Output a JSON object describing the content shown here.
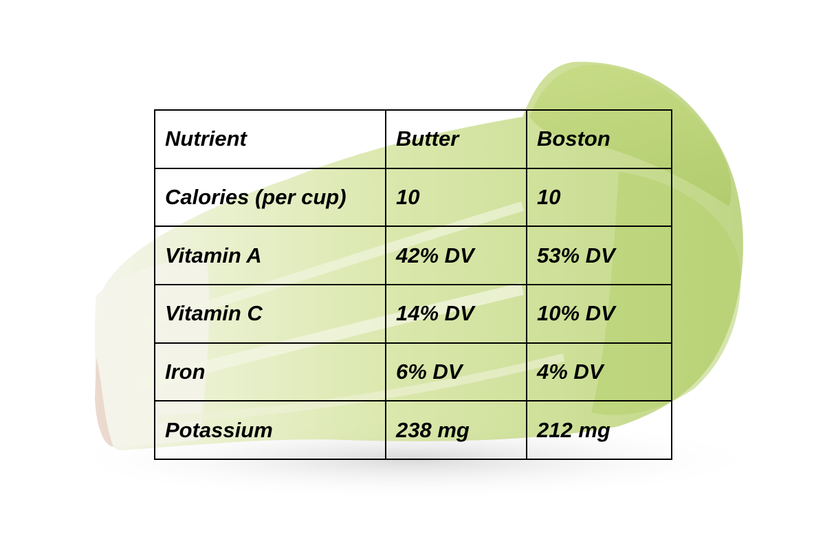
{
  "table": {
    "header": {
      "nutrient": "Nutrient",
      "butter": "Butter",
      "boston": "Boston"
    },
    "rows": [
      {
        "nutrient": "Calories (per cup)",
        "butter": "10",
        "boston": "10"
      },
      {
        "nutrient": "Vitamin A",
        "butter": "42% DV",
        "boston": "53% DV"
      },
      {
        "nutrient": "Vitamin C",
        "butter": "14% DV",
        "boston": "10% DV"
      },
      {
        "nutrient": "Iron",
        "butter": "6% DV",
        "boston": "4% DV"
      },
      {
        "nutrient": "Potassium",
        "butter": "238 mg",
        "boston": "212 mg"
      }
    ]
  },
  "colors": {
    "background": "#ffffff",
    "lettuce_light": "#e9efc8",
    "lettuce_mid": "#c9dc86",
    "lettuce_dark": "#a6c45a",
    "stem_white": "#f3f2ea",
    "stem_pink": "#ead8cf",
    "shadow": "#d9d9d9",
    "text": "#000000",
    "border": "#000000"
  }
}
